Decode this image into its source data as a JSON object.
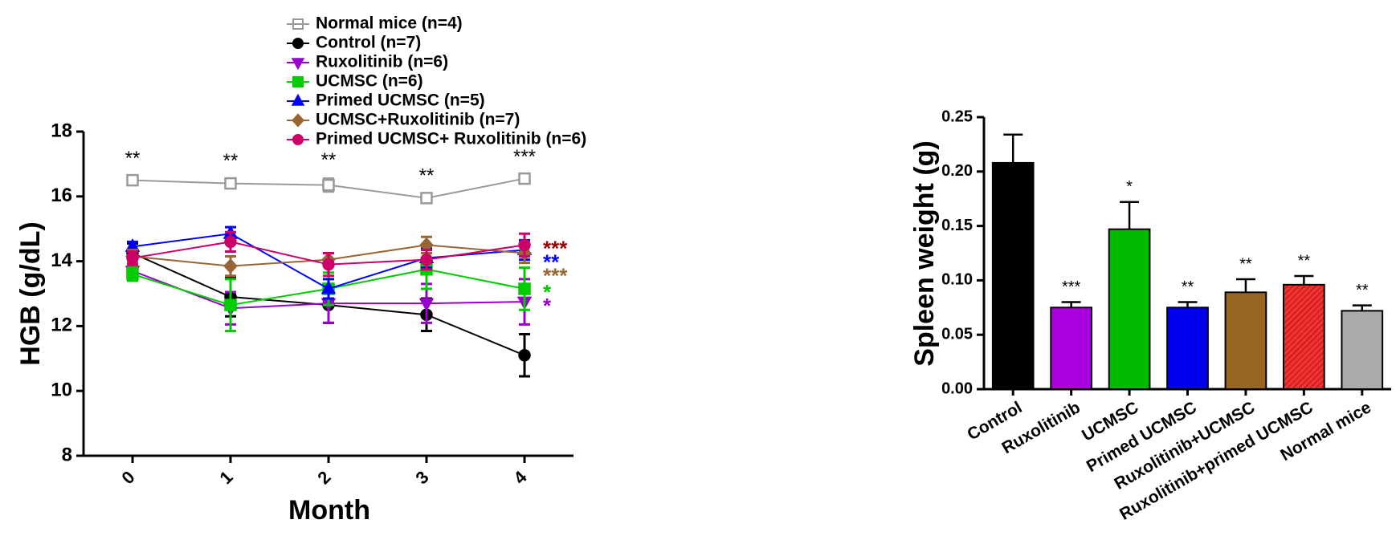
{
  "chart_data": [
    {
      "type": "line",
      "x_label": "Month",
      "y_label": "HGB (g/dL)",
      "x": [
        0,
        1,
        2,
        3,
        4
      ],
      "xlim": [
        -0.5,
        4.5
      ],
      "xticks": [
        0,
        1,
        2,
        3,
        4
      ],
      "ylim": [
        8,
        18
      ],
      "yticks": [
        8,
        10,
        12,
        14,
        16,
        18
      ],
      "series": [
        {
          "name": "Normal mice (n=4)",
          "color": "#999999",
          "marker": "square-open",
          "values": [
            16.5,
            16.4,
            16.35,
            15.95,
            16.55
          ],
          "errors": [
            0.1,
            0.12,
            0.2,
            0.12,
            0.1
          ],
          "value_annotations": [
            "**",
            "**",
            "**",
            "**",
            "***"
          ]
        },
        {
          "name": "Control (n=7)",
          "color": "#000000",
          "marker": "circle",
          "values": [
            14.25,
            12.9,
            12.65,
            12.35,
            11.1
          ],
          "errors": [
            0.3,
            0.6,
            0.55,
            0.5,
            0.65
          ]
        },
        {
          "name": "Ruxolitinib (n=6)",
          "color": "#9900cc",
          "marker": "triangle-down",
          "values": [
            13.7,
            12.55,
            12.7,
            12.7,
            12.75
          ],
          "errors": [
            0.2,
            0.5,
            0.6,
            0.6,
            0.7
          ],
          "significance": "*"
        },
        {
          "name": "UCMSC (n=6)",
          "color": "#00cc00",
          "marker": "square",
          "values": [
            13.6,
            12.65,
            13.15,
            13.75,
            13.15
          ],
          "errors": [
            0.2,
            0.8,
            0.5,
            0.6,
            0.65
          ],
          "significance": "*"
        },
        {
          "name": "Primed UCMSC (n=5)",
          "color": "#0000ff",
          "marker": "triangle",
          "values": [
            14.45,
            14.85,
            13.15,
            14.1,
            14.35
          ],
          "errors": [
            0.15,
            0.2,
            0.3,
            0.3,
            0.3
          ],
          "significance": "**"
        },
        {
          "name": "UCMSC+Ruxolitinib (n=7)",
          "color": "#996633",
          "marker": "diamond",
          "values": [
            14.15,
            13.85,
            14.05,
            14.5,
            14.25
          ],
          "errors": [
            0.2,
            0.3,
            0.2,
            0.25,
            0.3
          ],
          "significance": "***"
        },
        {
          "name": "Primed UCMSC+ Ruxolitinib (n=6)",
          "color": "#cc0066",
          "marker": "circle",
          "values": [
            14.1,
            14.6,
            13.9,
            14.05,
            14.5
          ],
          "errors": [
            0.2,
            0.3,
            0.35,
            0.3,
            0.35
          ],
          "significance": "***",
          "significance_color": "#990000"
        }
      ]
    },
    {
      "type": "bar",
      "y_label": "Spleen weight (g)",
      "categories": [
        "Control",
        "Ruxolitinib",
        "UCMSC",
        "Primed UCMSC",
        "Ruxolitinib+UCMSC",
        "Ruxolitinib+primed UCMSC",
        "Normal mice"
      ],
      "values": [
        0.208,
        0.075,
        0.147,
        0.075,
        0.089,
        0.096,
        0.072
      ],
      "errors": [
        0.026,
        0.005,
        0.025,
        0.005,
        0.012,
        0.008,
        0.005
      ],
      "colors": [
        "#000000",
        "#aa00dd",
        "#00bb00",
        "#0000ee",
        "#996622",
        "#ee3333",
        "#aaaaaa"
      ],
      "hatched": [
        false,
        false,
        false,
        false,
        false,
        true,
        false
      ],
      "value_annotations": [
        null,
        "***",
        "*",
        "**",
        "**",
        "**",
        "**"
      ],
      "ylim": [
        0,
        0.25
      ],
      "yticks": [
        {
          "value": 0,
          "label": "0.00"
        },
        {
          "value": 0.05,
          "label": "0.05"
        },
        {
          "value": 0.1,
          "label": "0.10"
        },
        {
          "value": 0.15,
          "label": "0.15"
        },
        {
          "value": 0.2,
          "label": "0.20"
        },
        {
          "value": 0.25,
          "label": "0.25"
        }
      ]
    }
  ]
}
